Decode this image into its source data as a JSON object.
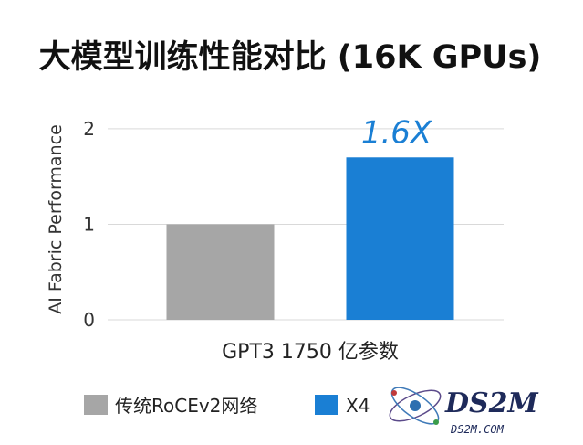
{
  "chart_data": {
    "type": "bar",
    "title": "大模型训练性能对比 (16K GPUs)",
    "ylabel": "AI Fabric Performance",
    "xlabel": "GPT3 1750 亿参数",
    "ylim": [
      0,
      2.2
    ],
    "yticks": [
      0,
      1,
      2
    ],
    "grid": true,
    "series": [
      {
        "name": "传统RoCEv2网络",
        "values": [
          1.0
        ],
        "color": "#a6a6a6"
      },
      {
        "name": "X4",
        "values": [
          1.7
        ],
        "color": "#1a7fd4"
      }
    ],
    "annotation": {
      "text": "1.6X",
      "color": "#1a7fd4"
    },
    "legend_position": "bottom"
  },
  "watermark": {
    "main": "DS2M",
    "sub": "DS2M.COM"
  }
}
